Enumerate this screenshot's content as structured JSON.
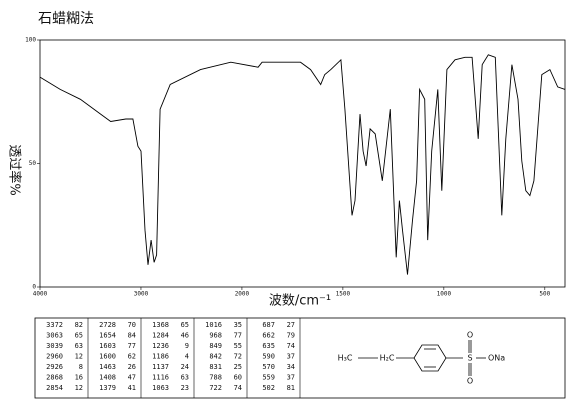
{
  "chart_data": {
    "type": "line",
    "title": "石蜡糊法",
    "ylabel": "透过率%",
    "xlabel": "波数/cm⁻¹",
    "xlim": [
      4000,
      400
    ],
    "x_scale_break": 2000,
    "x_scale_factor": 2,
    "xticks": [
      4000,
      3000,
      2000,
      1500,
      1000,
      500
    ],
    "ylim": [
      0,
      100
    ],
    "yticks": [
      0,
      50,
      100
    ],
    "color": "#000000",
    "x": [
      4000,
      3800,
      3600,
      3400,
      3300,
      3150,
      3080,
      3030,
      3000,
      2960,
      2930,
      2900,
      2870,
      2845,
      2810,
      2710,
      2410,
      2110,
      1920,
      1900,
      1710,
      1660,
      1610,
      1590,
      1560,
      1510,
      1490,
      1455,
      1440,
      1415,
      1400,
      1385,
      1365,
      1340,
      1305,
      1265,
      1236,
      1220,
      1205,
      1180,
      1155,
      1135,
      1120,
      1095,
      1080,
      1060,
      1030,
      1010,
      985,
      945,
      895,
      860,
      830,
      810,
      780,
      745,
      713,
      693,
      663,
      633,
      614,
      594,
      574,
      554,
      515,
      475,
      436,
      400
    ],
    "values": [
      85,
      80,
      76,
      70,
      67,
      68,
      68,
      57,
      55,
      23,
      9,
      19,
      10,
      13,
      72,
      82,
      88,
      91,
      89,
      91,
      91,
      88,
      82,
      86,
      88,
      92,
      72,
      29,
      35,
      70,
      55,
      49,
      64,
      62,
      43,
      72,
      12,
      35,
      23,
      5,
      27,
      43,
      80,
      76,
      19,
      55,
      80,
      39,
      88,
      92,
      93,
      93,
      60,
      90,
      94,
      93,
      29,
      60,
      90,
      76,
      51,
      39,
      37,
      43,
      86,
      88,
      81,
      80
    ]
  },
  "peak_table": [
    [
      [
        "3372",
        "82"
      ],
      [
        "3063",
        "65"
      ],
      [
        "3039",
        "63"
      ],
      [
        "2960",
        "12"
      ],
      [
        "2926",
        "8"
      ],
      [
        "2868",
        "16"
      ],
      [
        "2854",
        "12"
      ]
    ],
    [
      [
        "2728",
        "70"
      ],
      [
        "1654",
        "84"
      ],
      [
        "1603",
        "77"
      ],
      [
        "1600",
        "62"
      ],
      [
        "1463",
        "26"
      ],
      [
        "1408",
        "47"
      ],
      [
        "1379",
        "41"
      ]
    ],
    [
      [
        "1368",
        "65"
      ],
      [
        "1284",
        "46"
      ],
      [
        "1236",
        "9"
      ],
      [
        "1186",
        "4"
      ],
      [
        "1137",
        "24"
      ],
      [
        "1116",
        "63"
      ],
      [
        "1063",
        "23"
      ]
    ],
    [
      [
        "1016",
        "35"
      ],
      [
        "968",
        "77"
      ],
      [
        "849",
        "55"
      ],
      [
        "842",
        "72"
      ],
      [
        "831",
        "25"
      ],
      [
        "788",
        "60"
      ],
      [
        "722",
        "74"
      ]
    ],
    [
      [
        "687",
        "27"
      ],
      [
        "662",
        "79"
      ],
      [
        "635",
        "74"
      ],
      [
        "590",
        "37"
      ],
      [
        "570",
        "34"
      ],
      [
        "559",
        "37"
      ],
      [
        "502",
        "81"
      ]
    ]
  ],
  "structure": {
    "ethyl": "H₃C",
    "methylene": "H₂C",
    "sulfur": "S",
    "oxygen_top": "O",
    "oxygen_bottom": "O",
    "salt": "ONa"
  }
}
